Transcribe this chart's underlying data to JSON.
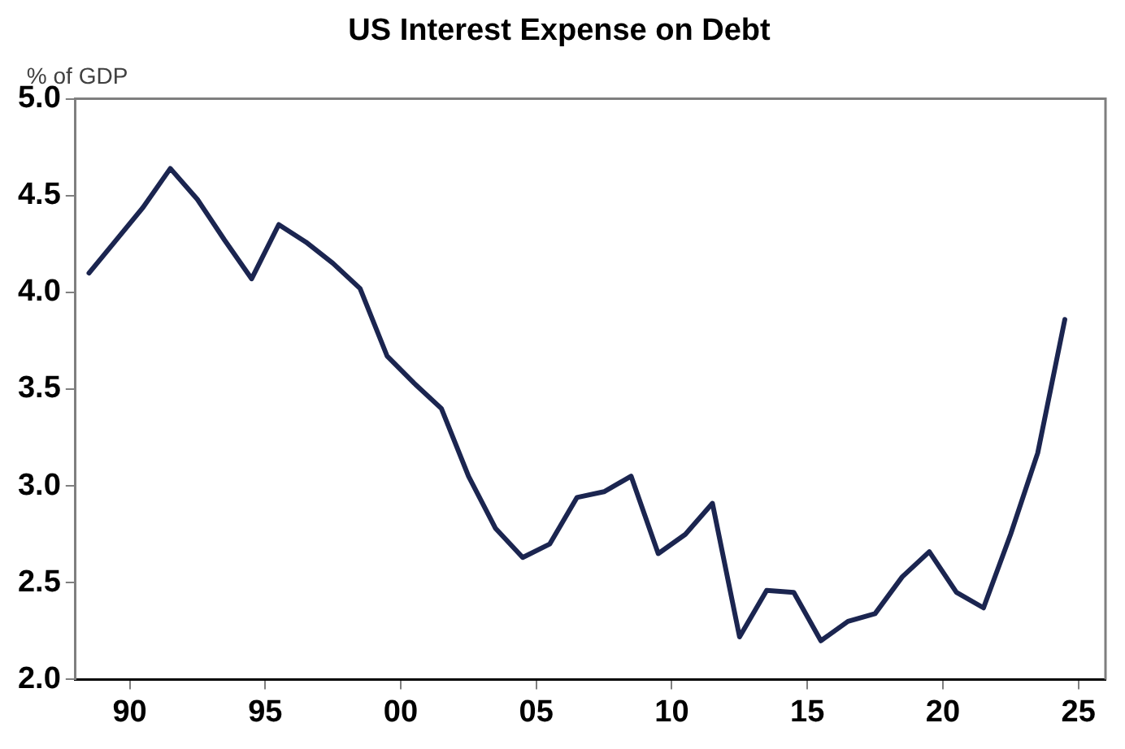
{
  "chart_data": {
    "type": "line",
    "title": "US Interest Expense on Debt",
    "ylabel": "% of GDP",
    "x": [
      1988.5,
      1989.5,
      1990.5,
      1991.5,
      1992.5,
      1993.5,
      1994.5,
      1995.5,
      1996.5,
      1997.5,
      1998.5,
      1999.5,
      2000.5,
      2001.5,
      2002.5,
      2003.5,
      2004.5,
      2005.5,
      2006.5,
      2007.5,
      2008.5,
      2009.5,
      2010.5,
      2011.5,
      2012.5,
      2013.5,
      2014.5,
      2015.5,
      2016.5,
      2017.5,
      2018.5,
      2019.5,
      2020.5,
      2021.5,
      2022.5,
      2023.5,
      2024.5
    ],
    "series": [
      {
        "color": "#1b2550",
        "values": [
          4.1,
          4.27,
          4.44,
          4.64,
          4.48,
          4.27,
          4.07,
          4.35,
          4.26,
          4.15,
          4.02,
          3.67,
          3.53,
          3.4,
          3.05,
          2.78,
          2.63,
          2.7,
          2.94,
          2.97,
          3.05,
          2.65,
          2.75,
          2.91,
          2.22,
          2.46,
          2.45,
          2.2,
          2.3,
          2.34,
          2.53,
          2.66,
          2.45,
          2.37,
          2.75,
          3.17,
          3.86
        ]
      }
    ],
    "xlim": [
      1988,
      2026
    ],
    "xticks": [
      {
        "value": 1990,
        "label": "90"
      },
      {
        "value": 1995,
        "label": "95"
      },
      {
        "value": 2000,
        "label": "00"
      },
      {
        "value": 2005,
        "label": "05"
      },
      {
        "value": 2010,
        "label": "10"
      },
      {
        "value": 2015,
        "label": "15"
      },
      {
        "value": 2020,
        "label": "20"
      },
      {
        "value": 2025,
        "label": "25"
      }
    ],
    "ylim": [
      2.0,
      5.0
    ],
    "yticks": [
      {
        "value": 2.0,
        "label": "2.0"
      },
      {
        "value": 2.5,
        "label": "2.5"
      },
      {
        "value": 3.0,
        "label": "3.0"
      },
      {
        "value": 3.5,
        "label": "3.5"
      },
      {
        "value": 4.0,
        "label": "4.0"
      },
      {
        "value": 4.5,
        "label": "4.5"
      },
      {
        "value": 5.0,
        "label": "5.0"
      }
    ],
    "grid": false,
    "legend": false,
    "marker": "none",
    "line_style": "solid"
  }
}
